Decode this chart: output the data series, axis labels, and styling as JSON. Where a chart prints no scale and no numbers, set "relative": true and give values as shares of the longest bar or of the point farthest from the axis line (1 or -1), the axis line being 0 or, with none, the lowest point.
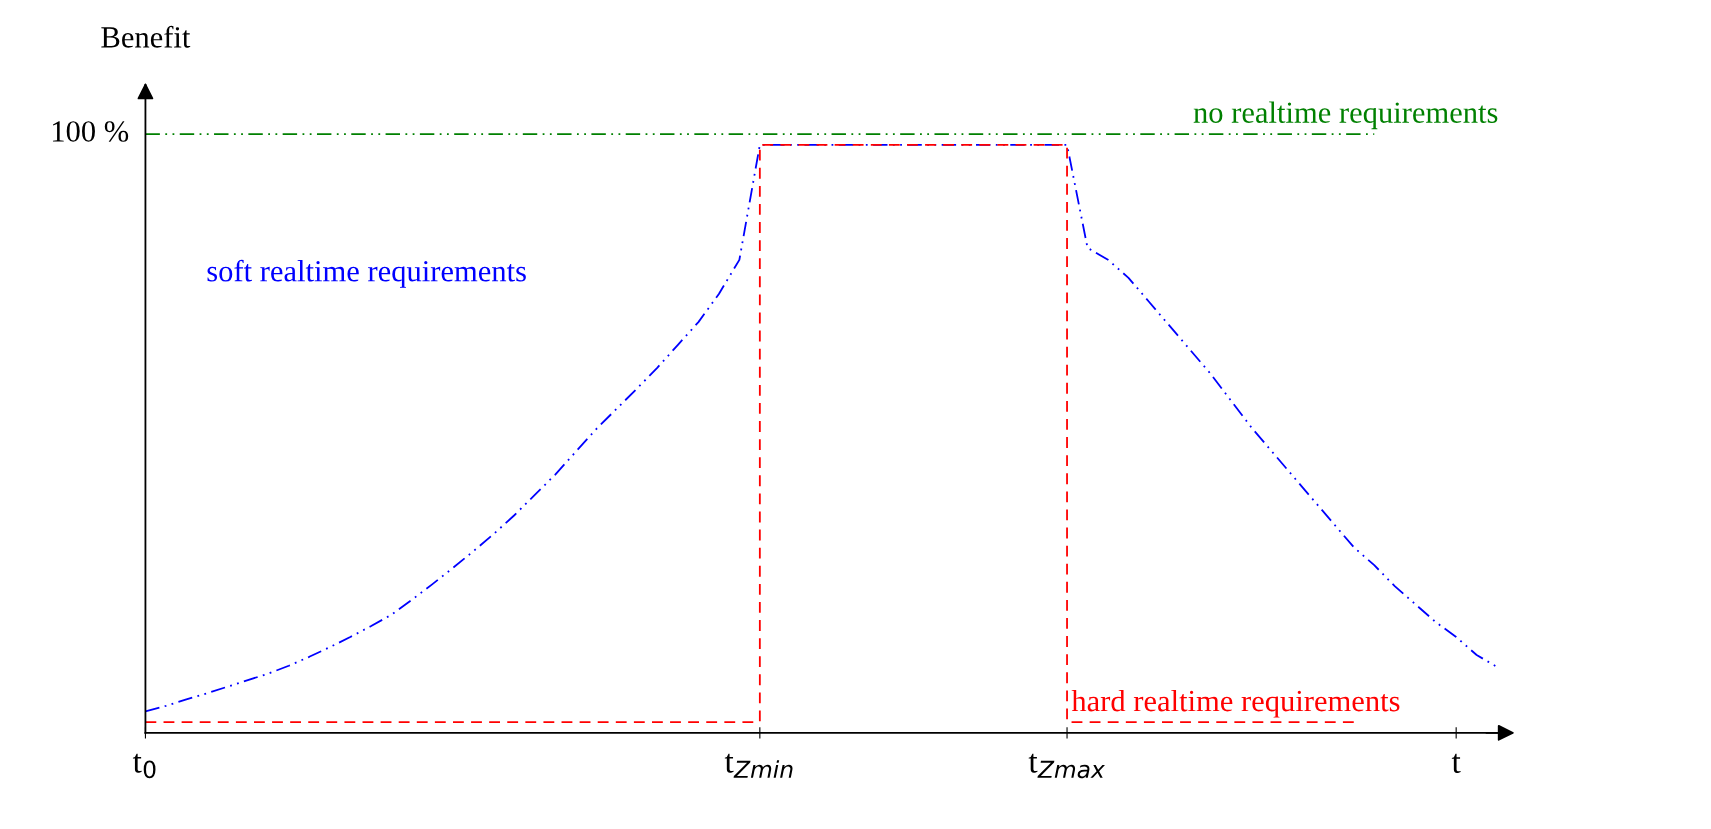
{
  "chart_data": {
    "type": "line",
    "relative": true,
    "ylabel": "Benefit",
    "legend": false,
    "categories": [
      "t$_{0}$",
      null,
      null,
      null,
      null,
      null,
      null,
      null,
      null,
      null,
      null,
      null,
      null,
      null,
      null,
      null,
      null,
      null,
      null,
      null,
      null,
      null,
      null,
      null,
      null,
      null,
      null,
      null,
      null,
      null,
      "t$_{Zmin}$",
      null,
      null,
      null,
      null,
      null,
      null,
      null,
      null,
      null,
      null,
      null,
      null,
      null,
      null,
      "t$_{Zmax}$",
      null,
      null,
      null,
      null,
      null,
      null,
      null,
      null,
      null,
      null,
      null,
      null,
      null,
      null,
      null,
      null,
      null,
      null,
      "t",
      null,
      null
    ],
    "annotations": [
      "100 %"
    ],
    "series": [
      {
        "name": "no realtime requirements",
        "color": "#008000",
        "line_style": "dashdot",
        "values": [
          1,
          1,
          1,
          1,
          1,
          1,
          1,
          1,
          1,
          1,
          1,
          1,
          1,
          1,
          1,
          1,
          1,
          1,
          1,
          1,
          1,
          1,
          1,
          1,
          1,
          1,
          1,
          1,
          1,
          1,
          1,
          1,
          1,
          1,
          1,
          1,
          1,
          1,
          1,
          1,
          1,
          1,
          1,
          1,
          1,
          1,
          1,
          1,
          1,
          1,
          1,
          1,
          1,
          1,
          1,
          1,
          1,
          1,
          1,
          1,
          1,
          null,
          null,
          null,
          null,
          null,
          null
        ]
      },
      {
        "name": "soft realtime requirements",
        "color": "#0000ff",
        "line_style": "dashdot",
        "values": [
          0.036,
          0.045,
          0.056,
          0.066,
          0.077,
          0.088,
          0.099,
          0.112,
          0.127,
          0.143,
          0.16,
          0.178,
          0.197,
          0.222,
          0.248,
          0.275,
          0.303,
          0.332,
          0.363,
          0.397,
          0.431,
          0.469,
          0.507,
          0.541,
          0.575,
          0.61,
          0.648,
          0.686,
          0.733,
          0.79,
          0.982,
          0.982,
          0.982,
          0.982,
          0.982,
          0.982,
          0.982,
          0.982,
          0.982,
          0.982,
          0.982,
          0.982,
          0.982,
          0.982,
          0.982,
          0.982,
          0.81,
          0.79,
          0.76,
          0.72,
          0.68,
          0.64,
          0.6,
          0.555,
          0.51,
          0.47,
          0.43,
          0.39,
          0.35,
          0.31,
          0.28,
          0.245,
          0.215,
          0.185,
          0.16,
          0.13,
          0.11
        ]
      },
      {
        "name": "hard realtime requirements",
        "type": "step",
        "color": "#ff0000",
        "line_style": "dashed",
        "values": [
          0.018,
          0.018,
          0.018,
          0.018,
          0.018,
          0.018,
          0.018,
          0.018,
          0.018,
          0.018,
          0.018,
          0.018,
          0.018,
          0.018,
          0.018,
          0.018,
          0.018,
          0.018,
          0.018,
          0.018,
          0.018,
          0.018,
          0.018,
          0.018,
          0.018,
          0.018,
          0.018,
          0.018,
          0.018,
          0.018,
          0.982,
          0.982,
          0.982,
          0.982,
          0.982,
          0.982,
          0.982,
          0.982,
          0.982,
          0.982,
          0.982,
          0.982,
          0.982,
          0.982,
          0.982,
          0.018,
          0.018,
          0.018,
          0.018,
          0.018,
          0.018,
          0.018,
          0.018,
          0.018,
          0.018,
          0.018,
          0.018,
          0.018,
          0.018,
          0.018,
          null,
          null,
          null,
          null,
          null,
          null,
          null
        ]
      }
    ]
  }
}
